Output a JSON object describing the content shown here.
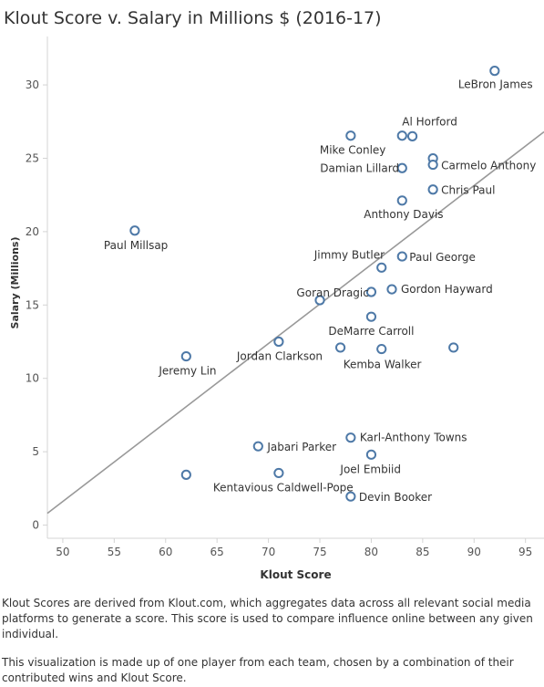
{
  "title": "Klout Score v. Salary in Millions $ (2016-17)",
  "notes": [
    "Klout Scores are derived from Klout.com, which aggregates data across all relevant social media platforms to generate a score. This score is used to compare influence online between any given individual.",
    "This visualization is made up of one player from each team, chosen by a combination of their contributed wins and Klout Score."
  ],
  "chart_data": {
    "type": "scatter",
    "title": "Klout Score v. Salary in Millions $ (2016-17)",
    "xlabel": "Klout Score",
    "ylabel": "Salary (Millions)",
    "xlim": [
      48.5,
      96.8
    ],
    "ylim": [
      -0.9,
      33.3
    ],
    "xticks": [
      50,
      55,
      60,
      65,
      70,
      75,
      80,
      85,
      90,
      95
    ],
    "yticks": [
      0,
      5,
      10,
      15,
      20,
      25,
      30
    ],
    "grid": false,
    "marker_color": "#4e79a7",
    "trend_color": "#999999",
    "trendline": {
      "x": [
        48.5,
        96.8
      ],
      "y": [
        0.8,
        26.8
      ]
    },
    "points": [
      {
        "x": 92,
        "y": 30.96,
        "label": "LeBron James"
      },
      {
        "x": 83,
        "y": 26.54,
        "label": "Al Horford"
      },
      {
        "x": 84,
        "y": 26.5,
        "label": ""
      },
      {
        "x": 78,
        "y": 26.54,
        "label": "Mike Conley"
      },
      {
        "x": 86,
        "y": 24.99,
        "label": ""
      },
      {
        "x": 86,
        "y": 24.56,
        "label": "Carmelo Anthony"
      },
      {
        "x": 83,
        "y": 24.33,
        "label": "Damian Lillard"
      },
      {
        "x": 86,
        "y": 22.87,
        "label": "Chris Paul"
      },
      {
        "x": 83,
        "y": 22.12,
        "label": "Anthony Davis"
      },
      {
        "x": 57,
        "y": 20.07,
        "label": "Paul Millsap"
      },
      {
        "x": 83,
        "y": 18.31,
        "label": "Paul George"
      },
      {
        "x": 81,
        "y": 17.55,
        "label": "Jimmy Butler"
      },
      {
        "x": 75,
        "y": 15.33,
        "label": ""
      },
      {
        "x": 82,
        "y": 16.07,
        "label": "Gordon Hayward"
      },
      {
        "x": 80,
        "y": 15.89,
        "label": "Goran Dragic"
      },
      {
        "x": 80,
        "y": 14.2,
        "label": "DeMarre Carroll"
      },
      {
        "x": 71,
        "y": 12.5,
        "label": "Jordan Clarkson"
      },
      {
        "x": 77,
        "y": 12.1,
        "label": ""
      },
      {
        "x": 81,
        "y": 12.0,
        "label": "Kemba Walker"
      },
      {
        "x": 88,
        "y": 12.1,
        "label": ""
      },
      {
        "x": 62,
        "y": 11.5,
        "label": "Jeremy Lin"
      },
      {
        "x": 78,
        "y": 5.96,
        "label": "Karl-Anthony Towns"
      },
      {
        "x": 69,
        "y": 5.37,
        "label": "Jabari Parker"
      },
      {
        "x": 80,
        "y": 4.8,
        "label": "Joel Embiid"
      },
      {
        "x": 62,
        "y": 3.43,
        "label": ""
      },
      {
        "x": 71,
        "y": 3.55,
        "label": "Kentavious Caldwell-Pope"
      },
      {
        "x": 78,
        "y": 1.95,
        "label": "Devin Booker"
      }
    ]
  }
}
